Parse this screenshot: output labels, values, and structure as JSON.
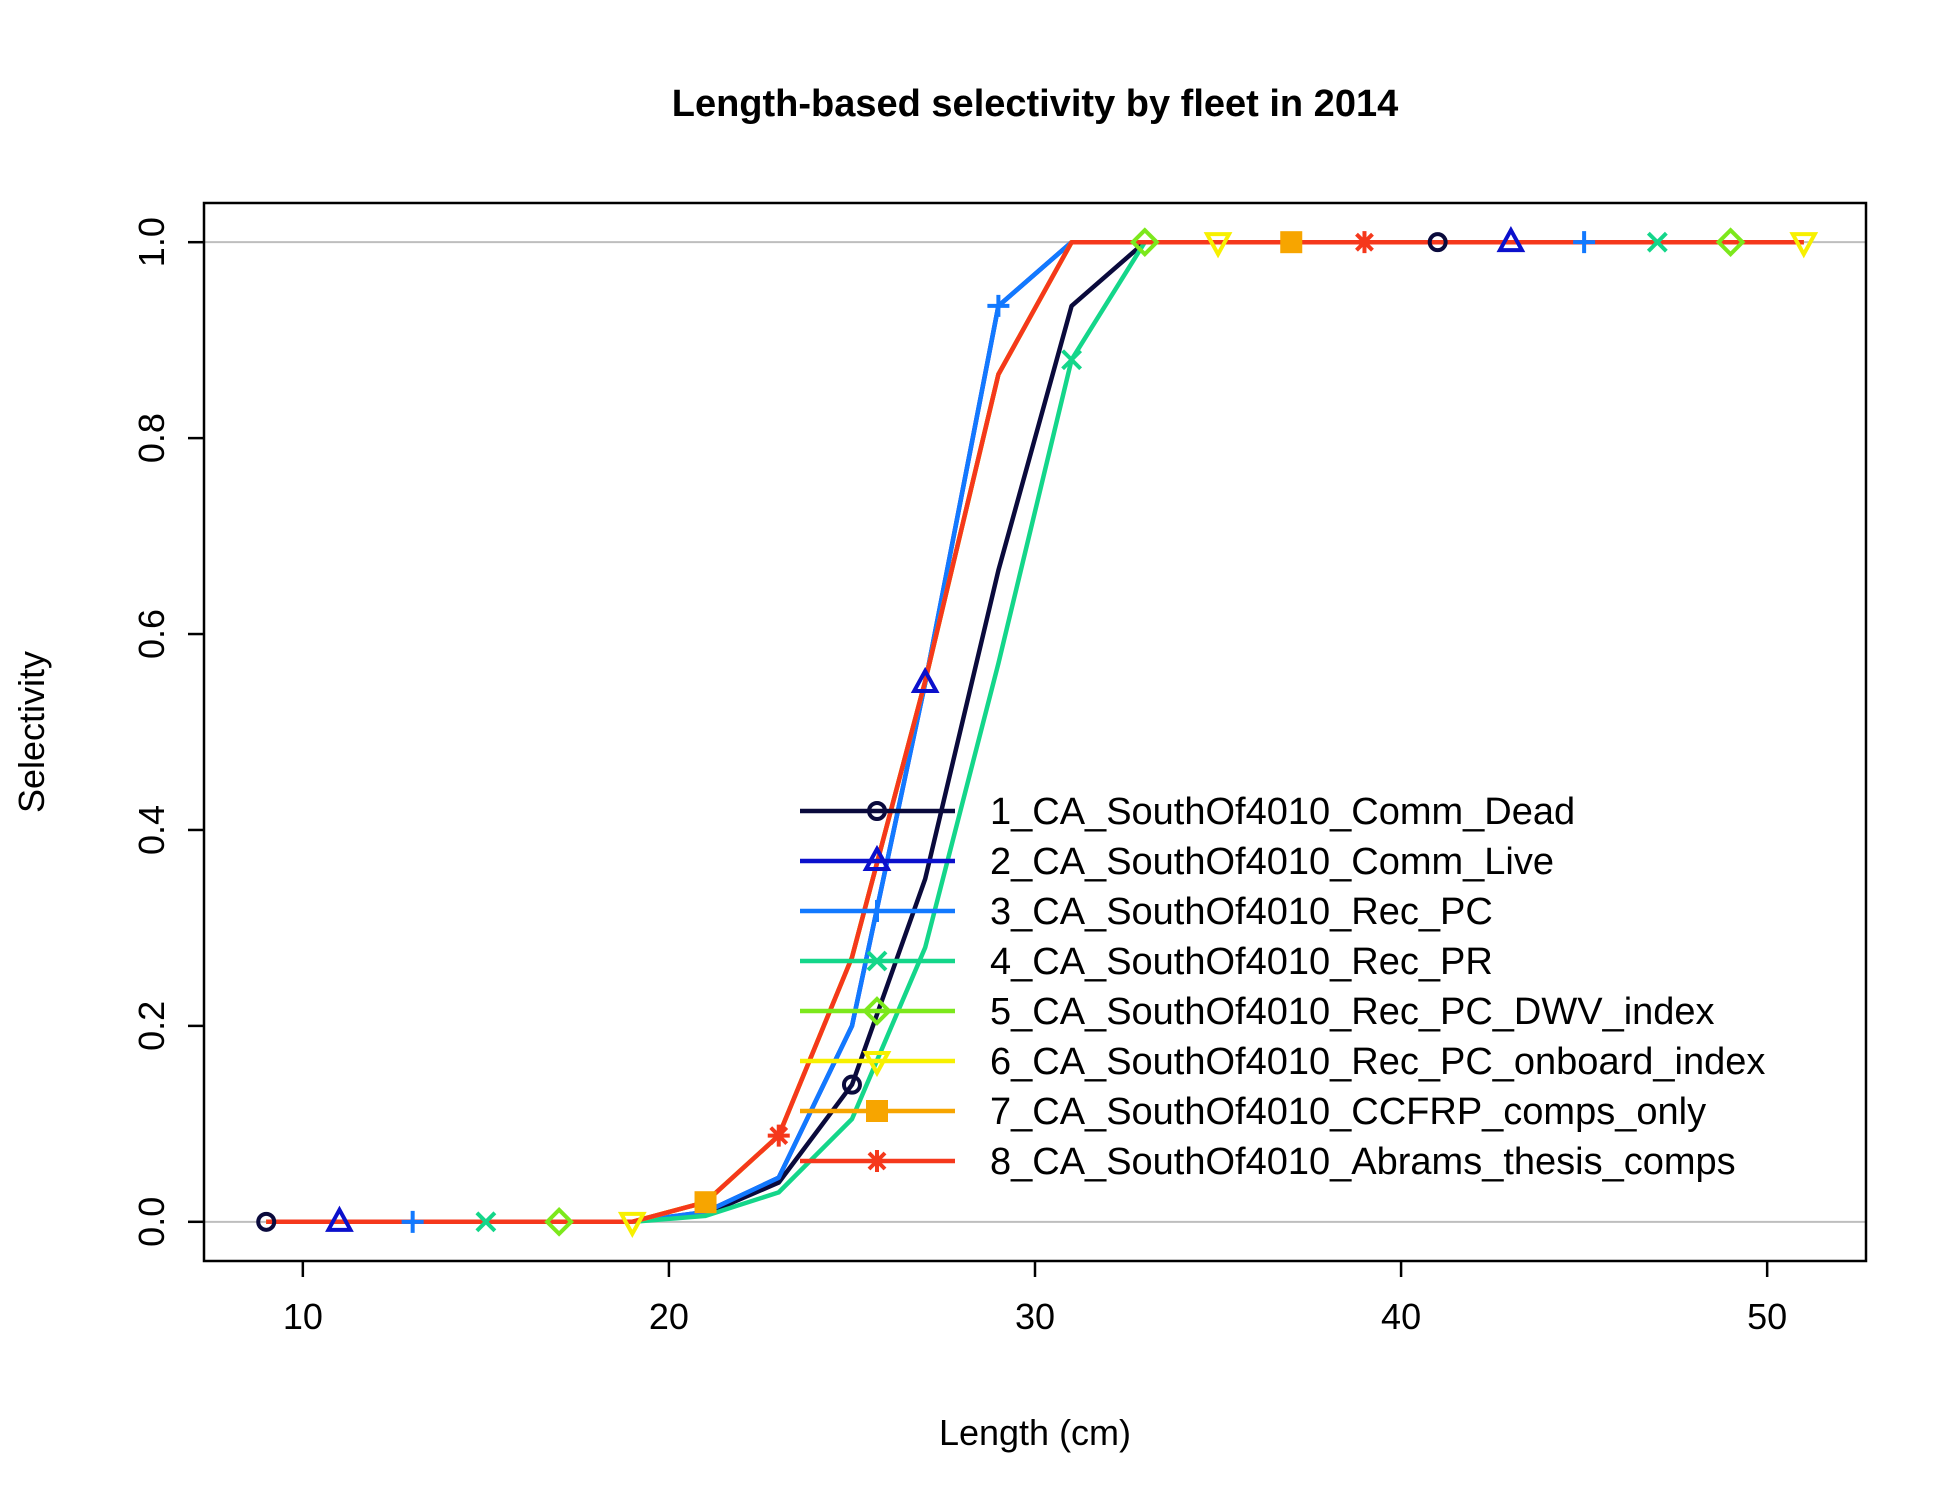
{
  "chart_data": {
    "type": "line",
    "title": "Length-based selectivity by fleet in 2014",
    "xlabel": "Length (cm)",
    "ylabel": "Selectivity",
    "xlim": [
      7.3,
      52.7
    ],
    "ylim": [
      -0.04,
      1.04
    ],
    "xticks": [
      10,
      20,
      30,
      40,
      50
    ],
    "yticks": [
      0.0,
      0.2,
      0.4,
      0.6,
      0.8,
      1.0
    ],
    "xtick_labels": [
      "10",
      "20",
      "30",
      "40",
      "50"
    ],
    "ytick_labels": [
      "0.0",
      "0.2",
      "0.4",
      "0.6",
      "0.8",
      "1.0"
    ],
    "reference_lines_y": [
      0,
      1
    ],
    "legend_position": "bottom-right inside plot",
    "x": [
      9,
      11,
      13,
      15,
      17,
      19,
      21,
      23,
      25,
      27,
      29,
      31,
      33,
      35,
      37,
      39,
      41,
      43,
      45,
      47,
      49,
      51
    ],
    "series": [
      {
        "name": "1_CA_SouthOf4010_Comm_Dead",
        "color": "#0a0a3c",
        "marker": "circle",
        "values": [
          0,
          0,
          0,
          0,
          0,
          0,
          0.008,
          0.04,
          0.14,
          0.35,
          0.665,
          0.935,
          1,
          1,
          1,
          1,
          1,
          1,
          1,
          1,
          1,
          1
        ]
      },
      {
        "name": "2_CA_SouthOf4010_Comm_Live",
        "color": "#0b10cc",
        "marker": "triangle",
        "values": [
          0,
          0,
          0,
          0,
          0,
          0,
          0.01,
          0.045,
          0.2,
          0.55,
          0.935,
          1,
          1,
          1,
          1,
          1,
          1,
          1,
          1,
          1,
          1,
          1
        ]
      },
      {
        "name": "3_CA_SouthOf4010_Rec_PC",
        "color": "#1279ff",
        "marker": "plus",
        "values": [
          0,
          0,
          0,
          0,
          0,
          0,
          0.01,
          0.045,
          0.2,
          0.55,
          0.935,
          1,
          1,
          1,
          1,
          1,
          1,
          1,
          1,
          1,
          1,
          1
        ]
      },
      {
        "name": "4_CA_SouthOf4010_Rec_PR",
        "color": "#14d68a",
        "marker": "cross",
        "values": [
          0,
          0,
          0,
          0,
          0,
          0,
          0.006,
          0.03,
          0.105,
          0.28,
          0.57,
          0.88,
          1,
          1,
          1,
          1,
          1,
          1,
          1,
          1,
          1,
          1
        ]
      },
      {
        "name": "5_CA_SouthOf4010_Rec_PC_DWV_index",
        "color": "#7ce81c",
        "marker": "diamond",
        "values": [
          0,
          0,
          0,
          0,
          0,
          0,
          0.02,
          0.088,
          0.27,
          0.552,
          0.865,
          1,
          1,
          1,
          1,
          1,
          1,
          1,
          1,
          1,
          1,
          1
        ]
      },
      {
        "name": "6_CA_SouthOf4010_Rec_PC_onboard_index",
        "color": "#f7f000",
        "marker": "triangle-down",
        "values": [
          0,
          0,
          0,
          0,
          0,
          0,
          0.02,
          0.088,
          0.27,
          0.552,
          0.865,
          1,
          1,
          1,
          1,
          1,
          1,
          1,
          1,
          1,
          1,
          1
        ]
      },
      {
        "name": "7_CA_SouthOf4010_CCFRP_comps_only",
        "color": "#f7a500",
        "marker": "square",
        "values": [
          0,
          0,
          0,
          0,
          0,
          0,
          0.02,
          0.088,
          0.27,
          0.552,
          0.865,
          1,
          1,
          1,
          1,
          1,
          1,
          1,
          1,
          1,
          1,
          1
        ]
      },
      {
        "name": "8_CA_SouthOf4010_Abrams_thesis_comps",
        "color": "#f5381c",
        "marker": "asterisk",
        "values": [
          0,
          0,
          0,
          0,
          0,
          0,
          0.02,
          0.088,
          0.27,
          0.552,
          0.865,
          1,
          1,
          1,
          1,
          1,
          1,
          1,
          1,
          1,
          1,
          1
        ]
      }
    ]
  }
}
